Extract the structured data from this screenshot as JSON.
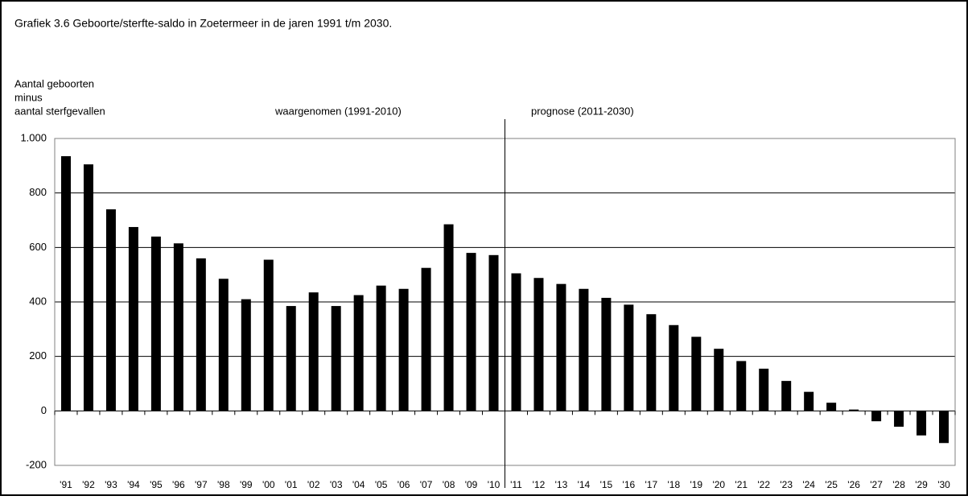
{
  "chart_data": {
    "type": "bar",
    "title": "Grafiek 3.6  Geboorte/sterfte-saldo  in Zoetermeer  in de jaren 1991 t/m 2030.",
    "y_label": [
      "Aantal geboorten",
      "minus",
      "aantal sterfgevallen"
    ],
    "annotations": [
      "waargenomen (1991-2010)",
      "prognose (2011-2030)"
    ],
    "categories": [
      "'91",
      "'92",
      "'93",
      "'94",
      "'95",
      "'96",
      "'97",
      "'98",
      "'99",
      "'00",
      "'01",
      "'02",
      "'03",
      "'04",
      "'05",
      "'06",
      "'07",
      "'08",
      "'09",
      "'10",
      "'11",
      "'12",
      "'13",
      "'14",
      "'15",
      "'16",
      "'17",
      "'18",
      "'19",
      "'20",
      "'21",
      "'22",
      "'23",
      "'24",
      "'25",
      "'26",
      "'27",
      "'28",
      "'29",
      "'30"
    ],
    "values": [
      935,
      905,
      740,
      675,
      640,
      615,
      560,
      485,
      410,
      555,
      385,
      435,
      385,
      425,
      460,
      448,
      525,
      685,
      580,
      572,
      505,
      488,
      466,
      448,
      415,
      390,
      355,
      315,
      272,
      228,
      183,
      155,
      110,
      70,
      30,
      5,
      -38,
      -58,
      -90,
      -118
    ],
    "color": "#000000",
    "ylim": [
      -200,
      1000
    ],
    "yticks": [
      -200,
      0,
      200,
      400,
      600,
      800,
      {
        "value": 1000,
        "label": "1.000"
      }
    ],
    "grid": true
  }
}
